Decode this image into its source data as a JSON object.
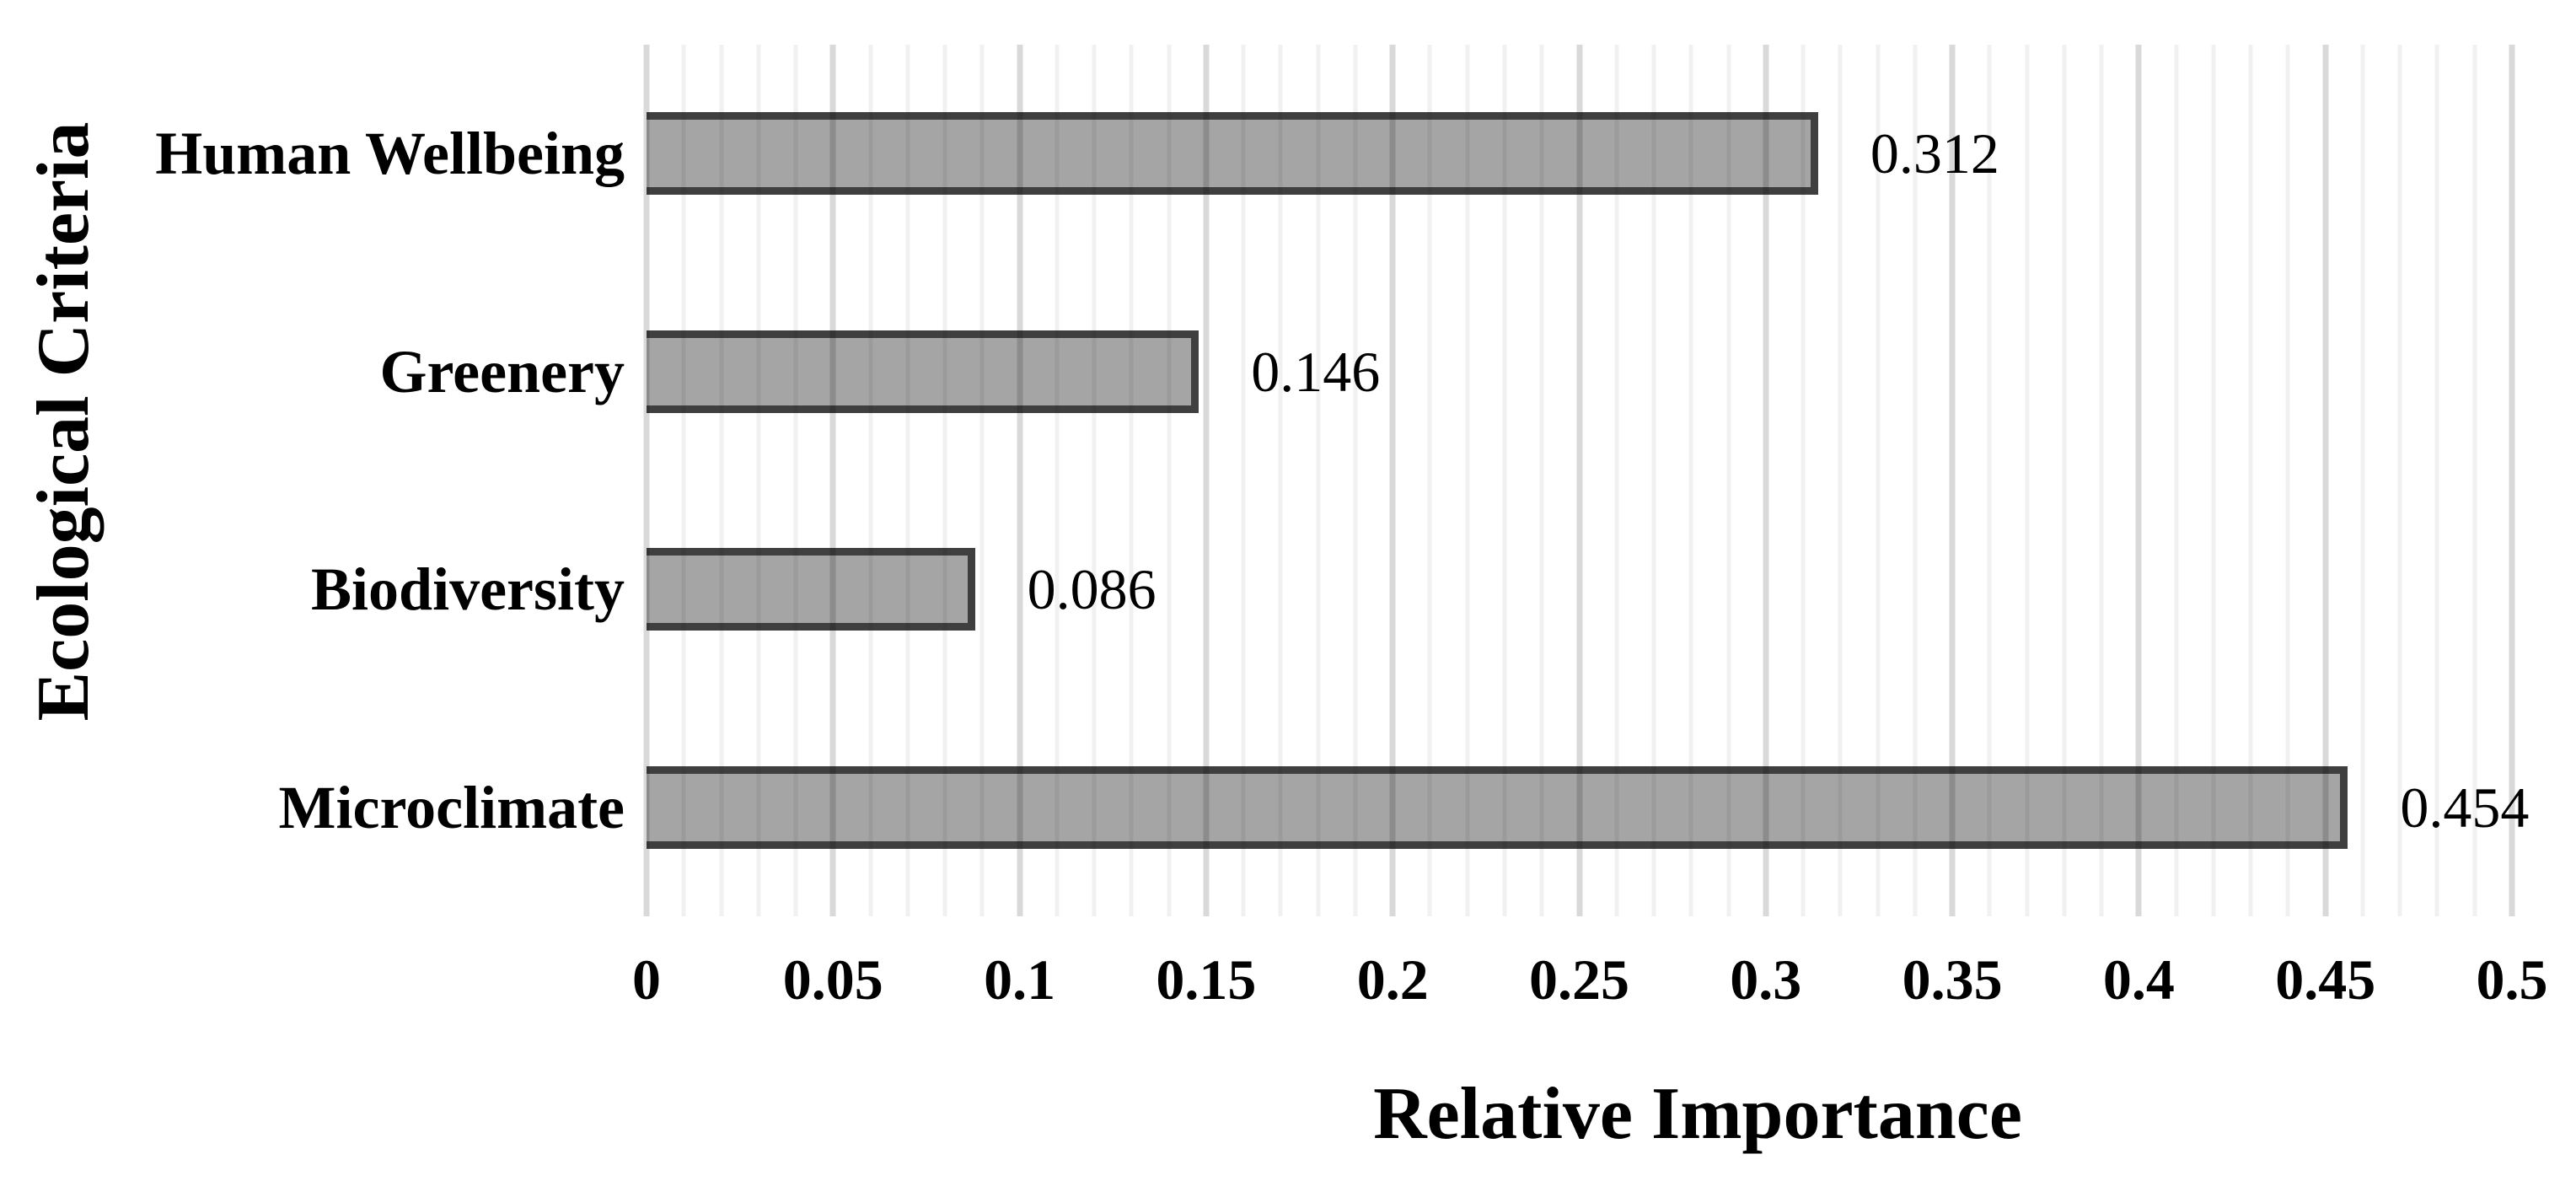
{
  "chart_data": {
    "type": "bar",
    "orientation": "horizontal",
    "title": "",
    "xlabel": "Relative Importance",
    "ylabel": "Ecological Criteria",
    "categories": [
      "Human Wellbeing",
      "Greenery",
      "Biodiversity",
      "Microclimate"
    ],
    "values": [
      0.312,
      0.146,
      0.086,
      0.454
    ],
    "value_labels": [
      "0.312",
      "0.146",
      "0.086",
      "0.454"
    ],
    "xlim": [
      0,
      0.5
    ],
    "x_major_tick_interval": 0.05,
    "x_minor_tick_interval": 0.01,
    "x_tick_labels": [
      "0",
      "0.05",
      "0.1",
      "0.15",
      "0.2",
      "0.25",
      "0.3",
      "0.35",
      "0.4",
      "0.45",
      "0.5"
    ],
    "grid": "vertical major and minor gridlines, drawn over bars",
    "legend": "none",
    "colors": {
      "bar_fill": "#a5a5a5",
      "bar_border": "#3f3f3f",
      "major_gridline": "#d9d9d9",
      "minor_gridline": "#f1f1f1",
      "text": "#000000",
      "background": "#ffffff"
    }
  }
}
